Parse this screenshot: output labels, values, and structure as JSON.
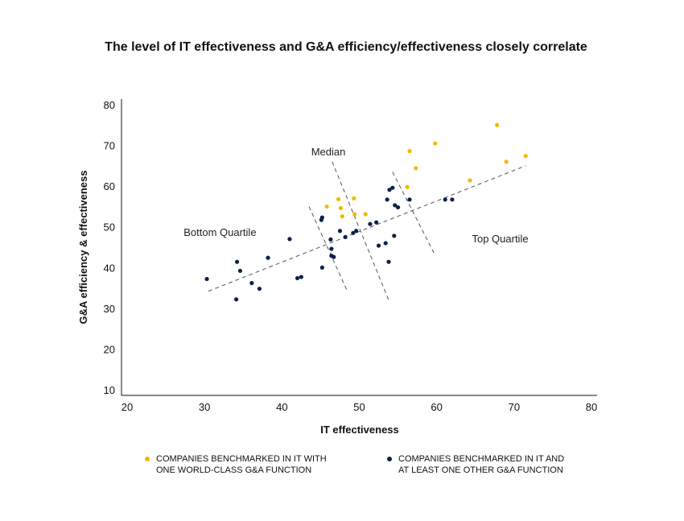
{
  "colors": {
    "gold": "#f2b800",
    "navy": "#0c2147"
  },
  "chart_data": {
    "type": "scatter",
    "title": "The level of IT effectiveness and G&A efficiency/effectiveness closely correlate",
    "xlabel": "IT effectiveness",
    "ylabel": "G&A efficiency & effectiveness",
    "xlim": [
      20,
      80
    ],
    "ylim": [
      10,
      80
    ],
    "xticks": [
      "20",
      "30",
      "40",
      "50",
      "60",
      "70",
      "80"
    ],
    "yticks": [
      "10",
      "20",
      "30",
      "40",
      "50",
      "60",
      "70",
      "80"
    ],
    "grid": false,
    "trendline": {
      "x": [
        30.5,
        71.5
      ],
      "y": [
        34.2,
        65.0
      ]
    },
    "boundaries": [
      {
        "x": [
          43.5,
          48.5
        ],
        "y": [
          55.0,
          34.0
        ]
      },
      {
        "x": [
          46.5,
          53.8
        ],
        "y": [
          66.0,
          32.0
        ]
      },
      {
        "x": [
          54.3,
          59.8
        ],
        "y": [
          63.5,
          43.0
        ]
      }
    ],
    "annotations": [
      {
        "text": "Median",
        "x": 46.0,
        "y": 68.5
      },
      {
        "text": "Bottom Quartile",
        "x": 32.0,
        "y": 48.8
      },
      {
        "text": "Top Quartile",
        "x": 68.2,
        "y": 47.2
      }
    ],
    "series": [
      {
        "name": "COMPANIES BENCHMARKED IN IT WITH ONE WORLD-CLASS G&A FUNCTION",
        "legend_lines": [
          "COMPANIES BENCHMARKED IN IT WITH",
          "ONE WORLD-CLASS G&A FUNCTION"
        ],
        "color": "#f2b800",
        "points": [
          [
            45.8,
            55.0
          ],
          [
            47.3,
            56.8
          ],
          [
            47.6,
            54.6
          ],
          [
            47.8,
            52.6
          ],
          [
            49.3,
            57.0
          ],
          [
            49.4,
            53.1
          ],
          [
            50.8,
            53.1
          ],
          [
            56.2,
            59.8
          ],
          [
            56.5,
            68.6
          ],
          [
            57.3,
            64.4
          ],
          [
            59.8,
            70.5
          ],
          [
            64.3,
            61.4
          ],
          [
            67.8,
            75.0
          ],
          [
            69.0,
            66.0
          ],
          [
            71.5,
            67.4
          ]
        ]
      },
      {
        "name": "COMPANIES BENCHMARKED IN IT AND AT LEAST ONE OTHER G&A FUNCTION",
        "legend_lines": [
          "COMPANIES BENCHMARKED IN IT AND",
          "AT LEAST ONE OTHER G&A FUNCTION"
        ],
        "color": "#0c2147",
        "points": [
          [
            30.3,
            37.2
          ],
          [
            34.2,
            41.4
          ],
          [
            34.1,
            32.2
          ],
          [
            34.6,
            39.2
          ],
          [
            36.1,
            36.2
          ],
          [
            37.1,
            34.8
          ],
          [
            38.2,
            42.4
          ],
          [
            41.0,
            47.0
          ],
          [
            42.0,
            37.4
          ],
          [
            42.5,
            37.7
          ],
          [
            45.1,
            51.7
          ],
          [
            45.2,
            52.3
          ],
          [
            45.2,
            40.0
          ],
          [
            46.3,
            46.9
          ],
          [
            46.4,
            44.6
          ],
          [
            46.4,
            42.9
          ],
          [
            46.7,
            42.6
          ],
          [
            47.5,
            49.0
          ],
          [
            48.2,
            47.5
          ],
          [
            49.2,
            48.5
          ],
          [
            49.6,
            49.0
          ],
          [
            51.4,
            50.7
          ],
          [
            52.2,
            51.1
          ],
          [
            52.5,
            45.4
          ],
          [
            53.4,
            46.0
          ],
          [
            53.6,
            56.7
          ],
          [
            53.9,
            59.1
          ],
          [
            53.8,
            41.4
          ],
          [
            54.3,
            59.6
          ],
          [
            54.5,
            47.8
          ],
          [
            54.6,
            55.3
          ],
          [
            55.0,
            54.8
          ],
          [
            56.5,
            56.7
          ],
          [
            61.1,
            56.7
          ],
          [
            62.0,
            56.7
          ]
        ]
      }
    ]
  }
}
